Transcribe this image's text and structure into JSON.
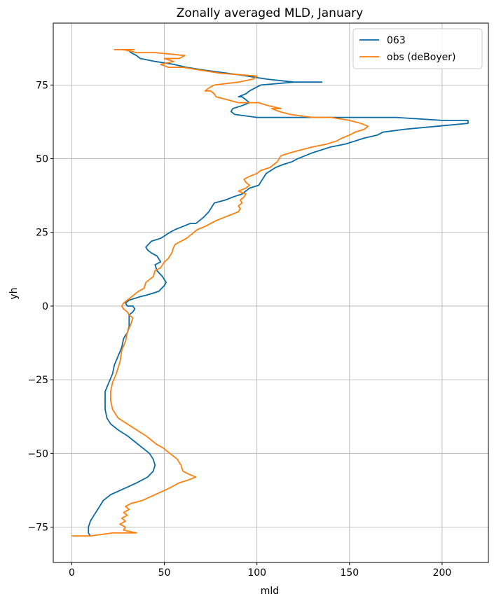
{
  "chart_data": {
    "type": "line",
    "title": "Zonally averaged MLD, January",
    "xlabel": "mld",
    "ylabel": "yh",
    "xlim": [
      -10,
      225
    ],
    "ylim": [
      -87,
      96
    ],
    "xticks": [
      0,
      50,
      100,
      150,
      200
    ],
    "xtick_labels": [
      "0",
      "50",
      "100",
      "150",
      "200"
    ],
    "yticks": [
      -75,
      -50,
      -25,
      0,
      25,
      50,
      75
    ],
    "ytick_labels": [
      "−75",
      "−50",
      "−25",
      "0",
      "25",
      "50",
      "75"
    ],
    "grid": true,
    "legend_position": "top-right",
    "series": [
      {
        "name": "063",
        "color": "#0a6aa4",
        "points": [
          [
            10,
            -78
          ],
          [
            9,
            -77
          ],
          [
            9,
            -75
          ],
          [
            10,
            -73
          ],
          [
            12,
            -71
          ],
          [
            15,
            -68
          ],
          [
            17,
            -66
          ],
          [
            21,
            -64
          ],
          [
            28,
            -62
          ],
          [
            35,
            -60
          ],
          [
            41,
            -58
          ],
          [
            44,
            -56
          ],
          [
            45,
            -54
          ],
          [
            44,
            -52
          ],
          [
            42,
            -50
          ],
          [
            38,
            -48
          ],
          [
            34,
            -46
          ],
          [
            30,
            -44
          ],
          [
            25,
            -42
          ],
          [
            21,
            -40
          ],
          [
            19,
            -38
          ],
          [
            18,
            -35
          ],
          [
            18,
            -32
          ],
          [
            18,
            -29
          ],
          [
            20,
            -26
          ],
          [
            22,
            -23
          ],
          [
            23,
            -20
          ],
          [
            25,
            -17
          ],
          [
            27,
            -14
          ],
          [
            28,
            -11
          ],
          [
            30,
            -9
          ],
          [
            31,
            -7
          ],
          [
            31,
            -5
          ],
          [
            31,
            -3
          ],
          [
            33,
            -2
          ],
          [
            34,
            -1
          ],
          [
            33,
            0
          ],
          [
            30,
            0
          ],
          [
            29,
            1
          ],
          [
            31,
            2
          ],
          [
            36,
            3
          ],
          [
            42,
            4
          ],
          [
            47,
            5
          ],
          [
            50,
            7
          ],
          [
            51,
            8
          ],
          [
            49,
            10
          ],
          [
            46,
            12
          ],
          [
            45,
            14
          ],
          [
            48,
            15
          ],
          [
            46,
            17
          ],
          [
            43,
            18
          ],
          [
            41,
            19
          ],
          [
            40,
            20
          ],
          [
            43,
            22
          ],
          [
            48,
            23
          ],
          [
            53,
            25
          ],
          [
            56,
            26
          ],
          [
            60,
            27
          ],
          [
            64,
            28
          ],
          [
            67,
            28
          ],
          [
            71,
            30
          ],
          [
            74,
            32
          ],
          [
            76,
            34
          ],
          [
            77,
            35
          ],
          [
            83,
            36
          ],
          [
            87,
            37
          ],
          [
            92,
            38
          ],
          [
            96,
            40
          ],
          [
            101,
            41
          ],
          [
            103,
            43
          ],
          [
            105,
            45
          ],
          [
            110,
            47
          ],
          [
            114,
            48
          ],
          [
            119,
            49
          ],
          [
            122,
            50
          ],
          [
            130,
            52
          ],
          [
            140,
            54
          ],
          [
            148,
            55
          ],
          [
            153,
            56
          ],
          [
            158,
            57
          ],
          [
            165,
            58
          ],
          [
            168,
            59
          ],
          [
            180,
            60
          ],
          [
            197,
            61
          ],
          [
            214,
            62
          ],
          [
            214,
            63
          ],
          [
            200,
            63
          ],
          [
            175,
            64
          ],
          [
            155,
            64
          ],
          [
            135,
            64
          ],
          [
            115,
            64
          ],
          [
            100,
            64
          ],
          [
            88,
            65
          ],
          [
            86,
            66
          ],
          [
            87,
            67
          ],
          [
            92,
            68
          ],
          [
            96,
            69
          ],
          [
            94,
            70
          ],
          [
            92,
            71
          ],
          [
            90,
            71
          ],
          [
            94,
            72
          ],
          [
            96,
            73
          ],
          [
            99,
            74
          ],
          [
            102,
            75
          ],
          [
            120,
            76
          ],
          [
            135,
            76
          ],
          [
            120,
            76
          ],
          [
            105,
            77
          ],
          [
            95,
            78
          ],
          [
            84,
            79
          ],
          [
            72,
            80
          ],
          [
            62,
            81
          ],
          [
            55,
            82
          ],
          [
            45,
            83
          ],
          [
            37,
            84
          ],
          [
            35,
            85
          ],
          [
            32,
            86
          ],
          [
            30,
            87
          ],
          [
            27,
            87
          ]
        ]
      },
      {
        "name": "obs (deBoyer)",
        "color": "#ff7f0e",
        "points": [
          [
            0,
            -78
          ],
          [
            10,
            -78
          ],
          [
            22,
            -77
          ],
          [
            35,
            -77
          ],
          [
            28,
            -76
          ],
          [
            29,
            -75
          ],
          [
            26,
            -74
          ],
          [
            29,
            -73
          ],
          [
            27,
            -72
          ],
          [
            30,
            -71
          ],
          [
            28,
            -70
          ],
          [
            31,
            -69
          ],
          [
            29,
            -68
          ],
          [
            32,
            -67
          ],
          [
            38,
            -66
          ],
          [
            45,
            -64
          ],
          [
            52,
            -62
          ],
          [
            58,
            -60
          ],
          [
            63,
            -59
          ],
          [
            67,
            -58
          ],
          [
            63,
            -57
          ],
          [
            60,
            -56
          ],
          [
            59,
            -54
          ],
          [
            57,
            -52
          ],
          [
            53,
            -50
          ],
          [
            49,
            -48
          ],
          [
            46,
            -47
          ],
          [
            44,
            -46
          ],
          [
            40,
            -44
          ],
          [
            35,
            -42
          ],
          [
            30,
            -40
          ],
          [
            25,
            -38
          ],
          [
            22,
            -35
          ],
          [
            21,
            -32
          ],
          [
            21,
            -29
          ],
          [
            22,
            -26
          ],
          [
            24,
            -23
          ],
          [
            26,
            -19
          ],
          [
            27,
            -15
          ],
          [
            29,
            -12
          ],
          [
            30,
            -9
          ],
          [
            32,
            -6
          ],
          [
            33,
            -4
          ],
          [
            31,
            -3
          ],
          [
            30,
            -2
          ],
          [
            28,
            -1
          ],
          [
            27,
            0
          ],
          [
            28,
            1
          ],
          [
            30,
            2
          ],
          [
            32,
            3
          ],
          [
            36,
            5
          ],
          [
            39,
            6
          ],
          [
            40,
            8
          ],
          [
            44,
            10
          ],
          [
            45,
            12
          ],
          [
            48,
            13
          ],
          [
            50,
            15
          ],
          [
            52,
            16
          ],
          [
            54,
            18
          ],
          [
            55,
            20
          ],
          [
            56,
            21
          ],
          [
            59,
            22
          ],
          [
            62,
            23
          ],
          [
            66,
            25
          ],
          [
            68,
            26
          ],
          [
            72,
            27
          ],
          [
            75,
            28
          ],
          [
            78,
            29
          ],
          [
            82,
            30
          ],
          [
            86,
            31
          ],
          [
            90,
            32
          ],
          [
            91,
            33
          ],
          [
            90,
            34
          ],
          [
            92,
            35
          ],
          [
            91,
            36
          ],
          [
            93,
            37
          ],
          [
            94,
            38
          ],
          [
            90,
            39
          ],
          [
            94,
            40
          ],
          [
            96,
            41
          ],
          [
            94,
            42
          ],
          [
            93,
            43
          ],
          [
            96,
            44
          ],
          [
            100,
            45
          ],
          [
            102,
            46
          ],
          [
            107,
            47
          ],
          [
            109,
            48
          ],
          [
            111,
            49
          ],
          [
            113,
            51
          ],
          [
            118,
            52
          ],
          [
            124,
            53
          ],
          [
            130,
            54
          ],
          [
            138,
            55
          ],
          [
            143,
            56
          ],
          [
            146,
            57
          ],
          [
            150,
            58
          ],
          [
            153,
            59
          ],
          [
            158,
            60
          ],
          [
            160,
            61
          ],
          [
            156,
            62
          ],
          [
            150,
            63
          ],
          [
            140,
            64
          ],
          [
            130,
            64
          ],
          [
            118,
            65
          ],
          [
            112,
            66
          ],
          [
            108,
            67
          ],
          [
            113,
            67
          ],
          [
            106,
            68
          ],
          [
            101,
            69
          ],
          [
            90,
            69
          ],
          [
            84,
            70
          ],
          [
            78,
            71
          ],
          [
            77,
            72
          ],
          [
            75,
            73
          ],
          [
            72,
            73
          ],
          [
            74,
            74
          ],
          [
            77,
            75
          ],
          [
            90,
            76
          ],
          [
            98,
            77
          ],
          [
            100,
            78
          ],
          [
            80,
            79
          ],
          [
            70,
            80
          ],
          [
            60,
            81
          ],
          [
            52,
            81
          ],
          [
            48,
            82
          ],
          [
            55,
            83
          ],
          [
            50,
            84
          ],
          [
            58,
            84
          ],
          [
            61,
            85
          ],
          [
            45,
            86
          ],
          [
            35,
            86
          ],
          [
            28,
            87
          ],
          [
            23,
            87
          ],
          [
            34,
            87
          ]
        ]
      }
    ]
  }
}
